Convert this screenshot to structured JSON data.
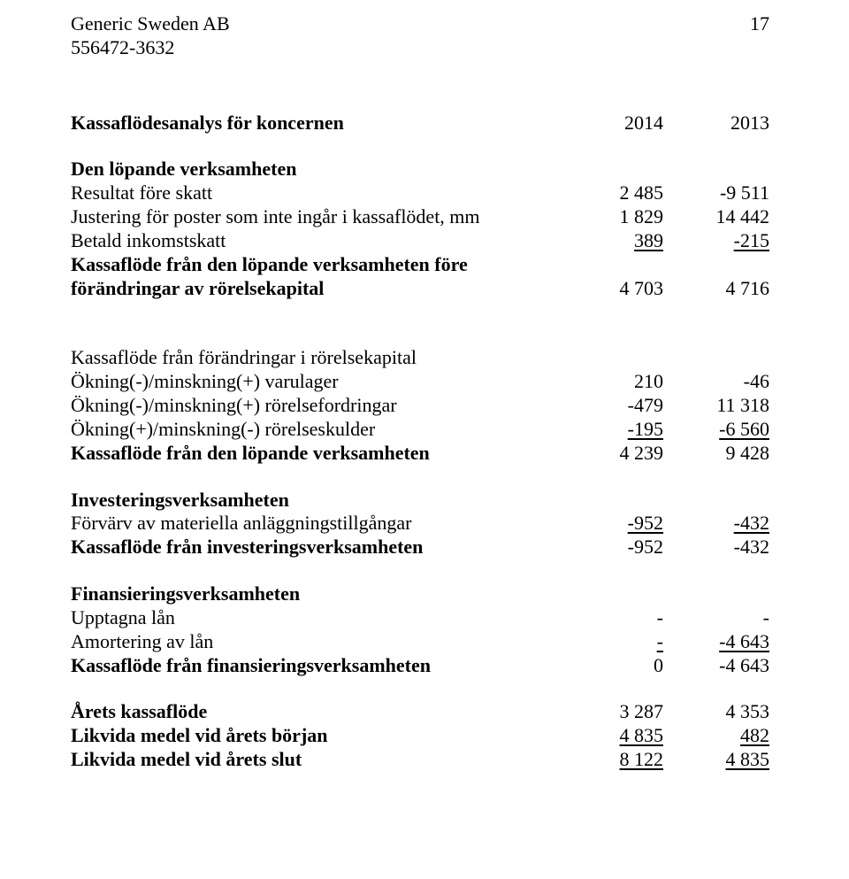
{
  "header": {
    "company": "Generic Sweden AB",
    "orgnr": "556472-3632",
    "page": "17"
  },
  "title": "Kassaflödesanalys för koncernen",
  "years": {
    "a": "2014",
    "b": "2013"
  },
  "s1": {
    "heading": "Den löpande verksamheten",
    "r1": {
      "label": "Resultat före skatt",
      "a": "2 485",
      "b": "-9 511"
    },
    "r2": {
      "label": "Justering för poster som inte ingår i kassaflödet, mm",
      "a": "1 829",
      "b": "14 442"
    },
    "r3": {
      "label": "Betald inkomstskatt",
      "a": "389",
      "b": "-215"
    },
    "r4a": {
      "label": "Kassaflöde från den löpande verksamheten före"
    },
    "r4b": {
      "label": "förändringar av rörelsekapital",
      "a": "4 703",
      "b": "4 716"
    }
  },
  "s2": {
    "r1": {
      "label": "Kassaflöde från förändringar i rörelsekapital"
    },
    "r2": {
      "label": "Ökning(-)/minskning(+) varulager",
      "a": "210",
      "b": "-46"
    },
    "r3": {
      "label": "Ökning(-)/minskning(+) rörelsefordringar",
      "a": "-479",
      "b": "11 318"
    },
    "r4": {
      "label": "Ökning(+)/minskning(-) rörelseskulder",
      "a": "-195",
      "b": "-6 560"
    },
    "r5": {
      "label": "Kassaflöde från den löpande verksamheten",
      "a": "4 239",
      "b": "9 428"
    }
  },
  "s3": {
    "heading": "Investeringsverksamheten",
    "r1": {
      "label": "Förvärv av materiella anläggningstillgångar",
      "a": "-952",
      "b": "-432"
    },
    "r2": {
      "label": "Kassaflöde från investeringsverksamheten",
      "a": "-952",
      "b": "-432"
    }
  },
  "s4": {
    "heading": "Finansieringsverksamheten",
    "r1": {
      "label": "Upptagna lån",
      "a": "-",
      "b": "-"
    },
    "r2": {
      "label": "Amortering av lån",
      "a": "-",
      "b": "-4 643"
    },
    "r3": {
      "label": "Kassaflöde från finansieringsverksamheten",
      "a": "0",
      "b": "-4 643"
    }
  },
  "s5": {
    "r1": {
      "label": "Årets kassaflöde",
      "a": "3 287",
      "b": "4 353"
    },
    "r2": {
      "label": "Likvida medel vid årets början",
      "a": "4 835",
      "b": "482"
    },
    "r3": {
      "label": "Likvida medel vid årets slut",
      "a": "8 122",
      "b": "4 835"
    }
  }
}
